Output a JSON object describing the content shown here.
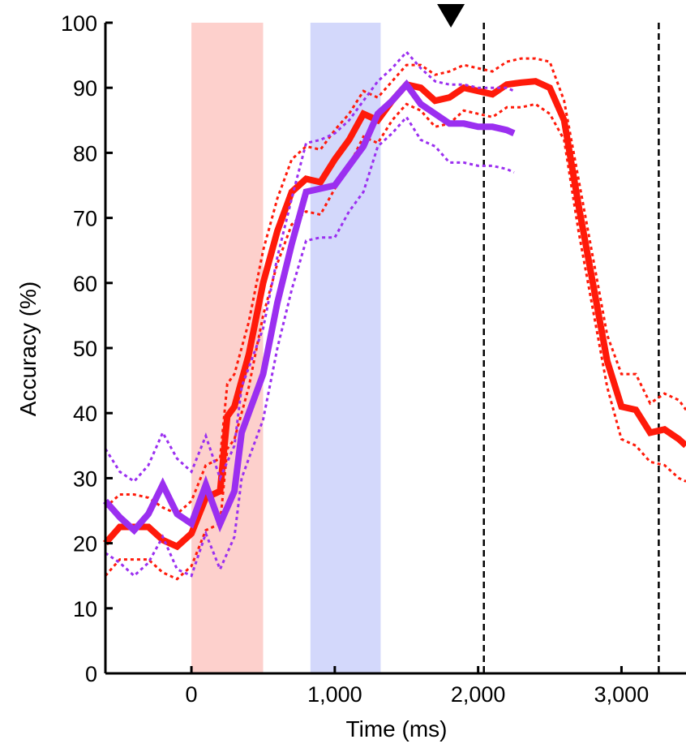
{
  "chart_data": {
    "type": "line",
    "xlabel": "Time (ms)",
    "ylabel": "Accuracy (%)",
    "xlim": [
      -600,
      3450
    ],
    "ylim": [
      0,
      100
    ],
    "xticks": [
      0,
      1000,
      2000,
      3000
    ],
    "xtick_labels": [
      "0",
      "1,000",
      "2,000",
      "3,000"
    ],
    "yticks": [
      0,
      10,
      20,
      30,
      40,
      50,
      60,
      70,
      80,
      90,
      100
    ],
    "ytick_labels": [
      "0",
      "10",
      "20",
      "30",
      "40",
      "50",
      "60",
      "70",
      "80",
      "90",
      "100"
    ],
    "grid": false,
    "shaded_regions": [
      {
        "x": [
          0,
          500
        ],
        "color": "#fdd0cc"
      },
      {
        "x": [
          830,
          1320
        ],
        "color": "#d3d8fb"
      }
    ],
    "vlines": [
      {
        "x": 2040,
        "style": "dashed",
        "color": "#000000"
      },
      {
        "x": 3260,
        "style": "dashed",
        "color": "#000000"
      }
    ],
    "marker": {
      "shape": "down-triangle",
      "x": 1810,
      "color": "#000000"
    },
    "series": [
      {
        "color": "#ff1a0a",
        "x": [
          -600,
          -500,
          -400,
          -300,
          -200,
          -100,
          0,
          100,
          200,
          250,
          300,
          400,
          500,
          600,
          700,
          800,
          900,
          1000,
          1100,
          1200,
          1300,
          1400,
          1500,
          1600,
          1700,
          1800,
          1900,
          2000,
          2100,
          2200,
          2300,
          2400,
          2500,
          2600,
          2700,
          2800,
          2900,
          3000,
          3100,
          3200,
          3300,
          3400,
          3450
        ],
        "y": [
          20,
          22.5,
          22.5,
          22.5,
          20.5,
          19.5,
          21.5,
          27,
          28,
          39.5,
          41,
          49,
          60,
          68,
          74,
          76,
          75.5,
          79,
          82,
          86,
          85,
          88,
          90.5,
          90,
          88,
          88.5,
          90,
          89.5,
          89,
          90.5,
          90.8,
          91,
          90,
          85,
          72,
          60,
          48,
          41,
          40.5,
          37,
          37.5,
          36,
          35
        ],
        "upper": [
          25.5,
          27.5,
          27.5,
          27,
          25.5,
          24.5,
          26.5,
          32,
          33,
          44.5,
          46,
          54,
          65,
          73,
          79,
          81,
          80.5,
          83.5,
          86,
          89.5,
          88.5,
          91,
          93.5,
          93.5,
          92,
          92.5,
          93.5,
          93,
          92.5,
          94,
          94.5,
          94.5,
          94,
          88,
          76,
          64,
          52,
          46,
          46,
          41.5,
          43,
          42,
          40.5
        ],
        "lower": [
          15,
          17.5,
          17.5,
          17.5,
          15.5,
          14.5,
          16.5,
          22,
          23,
          34.5,
          36,
          44,
          55,
          63,
          69,
          71,
          70.5,
          74.5,
          78,
          82.5,
          81.5,
          85,
          87.5,
          86.5,
          84,
          84.5,
          86.5,
          86,
          85.5,
          87,
          87,
          87.5,
          86,
          82,
          68,
          56,
          44,
          36,
          35,
          32.5,
          32,
          30,
          29.5
        ]
      },
      {
        "color": "#9b2ff0",
        "x": [
          -600,
          -500,
          -400,
          -300,
          -200,
          -100,
          0,
          100,
          200,
          300,
          350,
          400,
          500,
          600,
          700,
          800,
          900,
          1000,
          1100,
          1200,
          1300,
          1400,
          1500,
          1600,
          1700,
          1800,
          1900,
          2000,
          2100,
          2200,
          2250
        ],
        "y": [
          26.5,
          24,
          22,
          24.5,
          29,
          24.5,
          23,
          29,
          23,
          28,
          37,
          40,
          46,
          57,
          66,
          74,
          74.5,
          75,
          78,
          81,
          86,
          88,
          90.5,
          87.5,
          86,
          84.5,
          84.5,
          84,
          84,
          83.5,
          83
        ],
        "upper": [
          34.5,
          31,
          29.5,
          32,
          37,
          33,
          31,
          36.5,
          30,
          35,
          44,
          47,
          53,
          64,
          73,
          81.5,
          82,
          83,
          85,
          88,
          91,
          93,
          95.5,
          93,
          91,
          90.5,
          90.5,
          90,
          90,
          90,
          89.5
        ],
        "lower": [
          18.5,
          17,
          15,
          17,
          21,
          16,
          15,
          21.5,
          16,
          21,
          30,
          33,
          39,
          50,
          59,
          66.5,
          67,
          67,
          71,
          74,
          81,
          83,
          85.5,
          82,
          81,
          78.5,
          78.5,
          78,
          78,
          77.5,
          77
        ]
      }
    ]
  }
}
